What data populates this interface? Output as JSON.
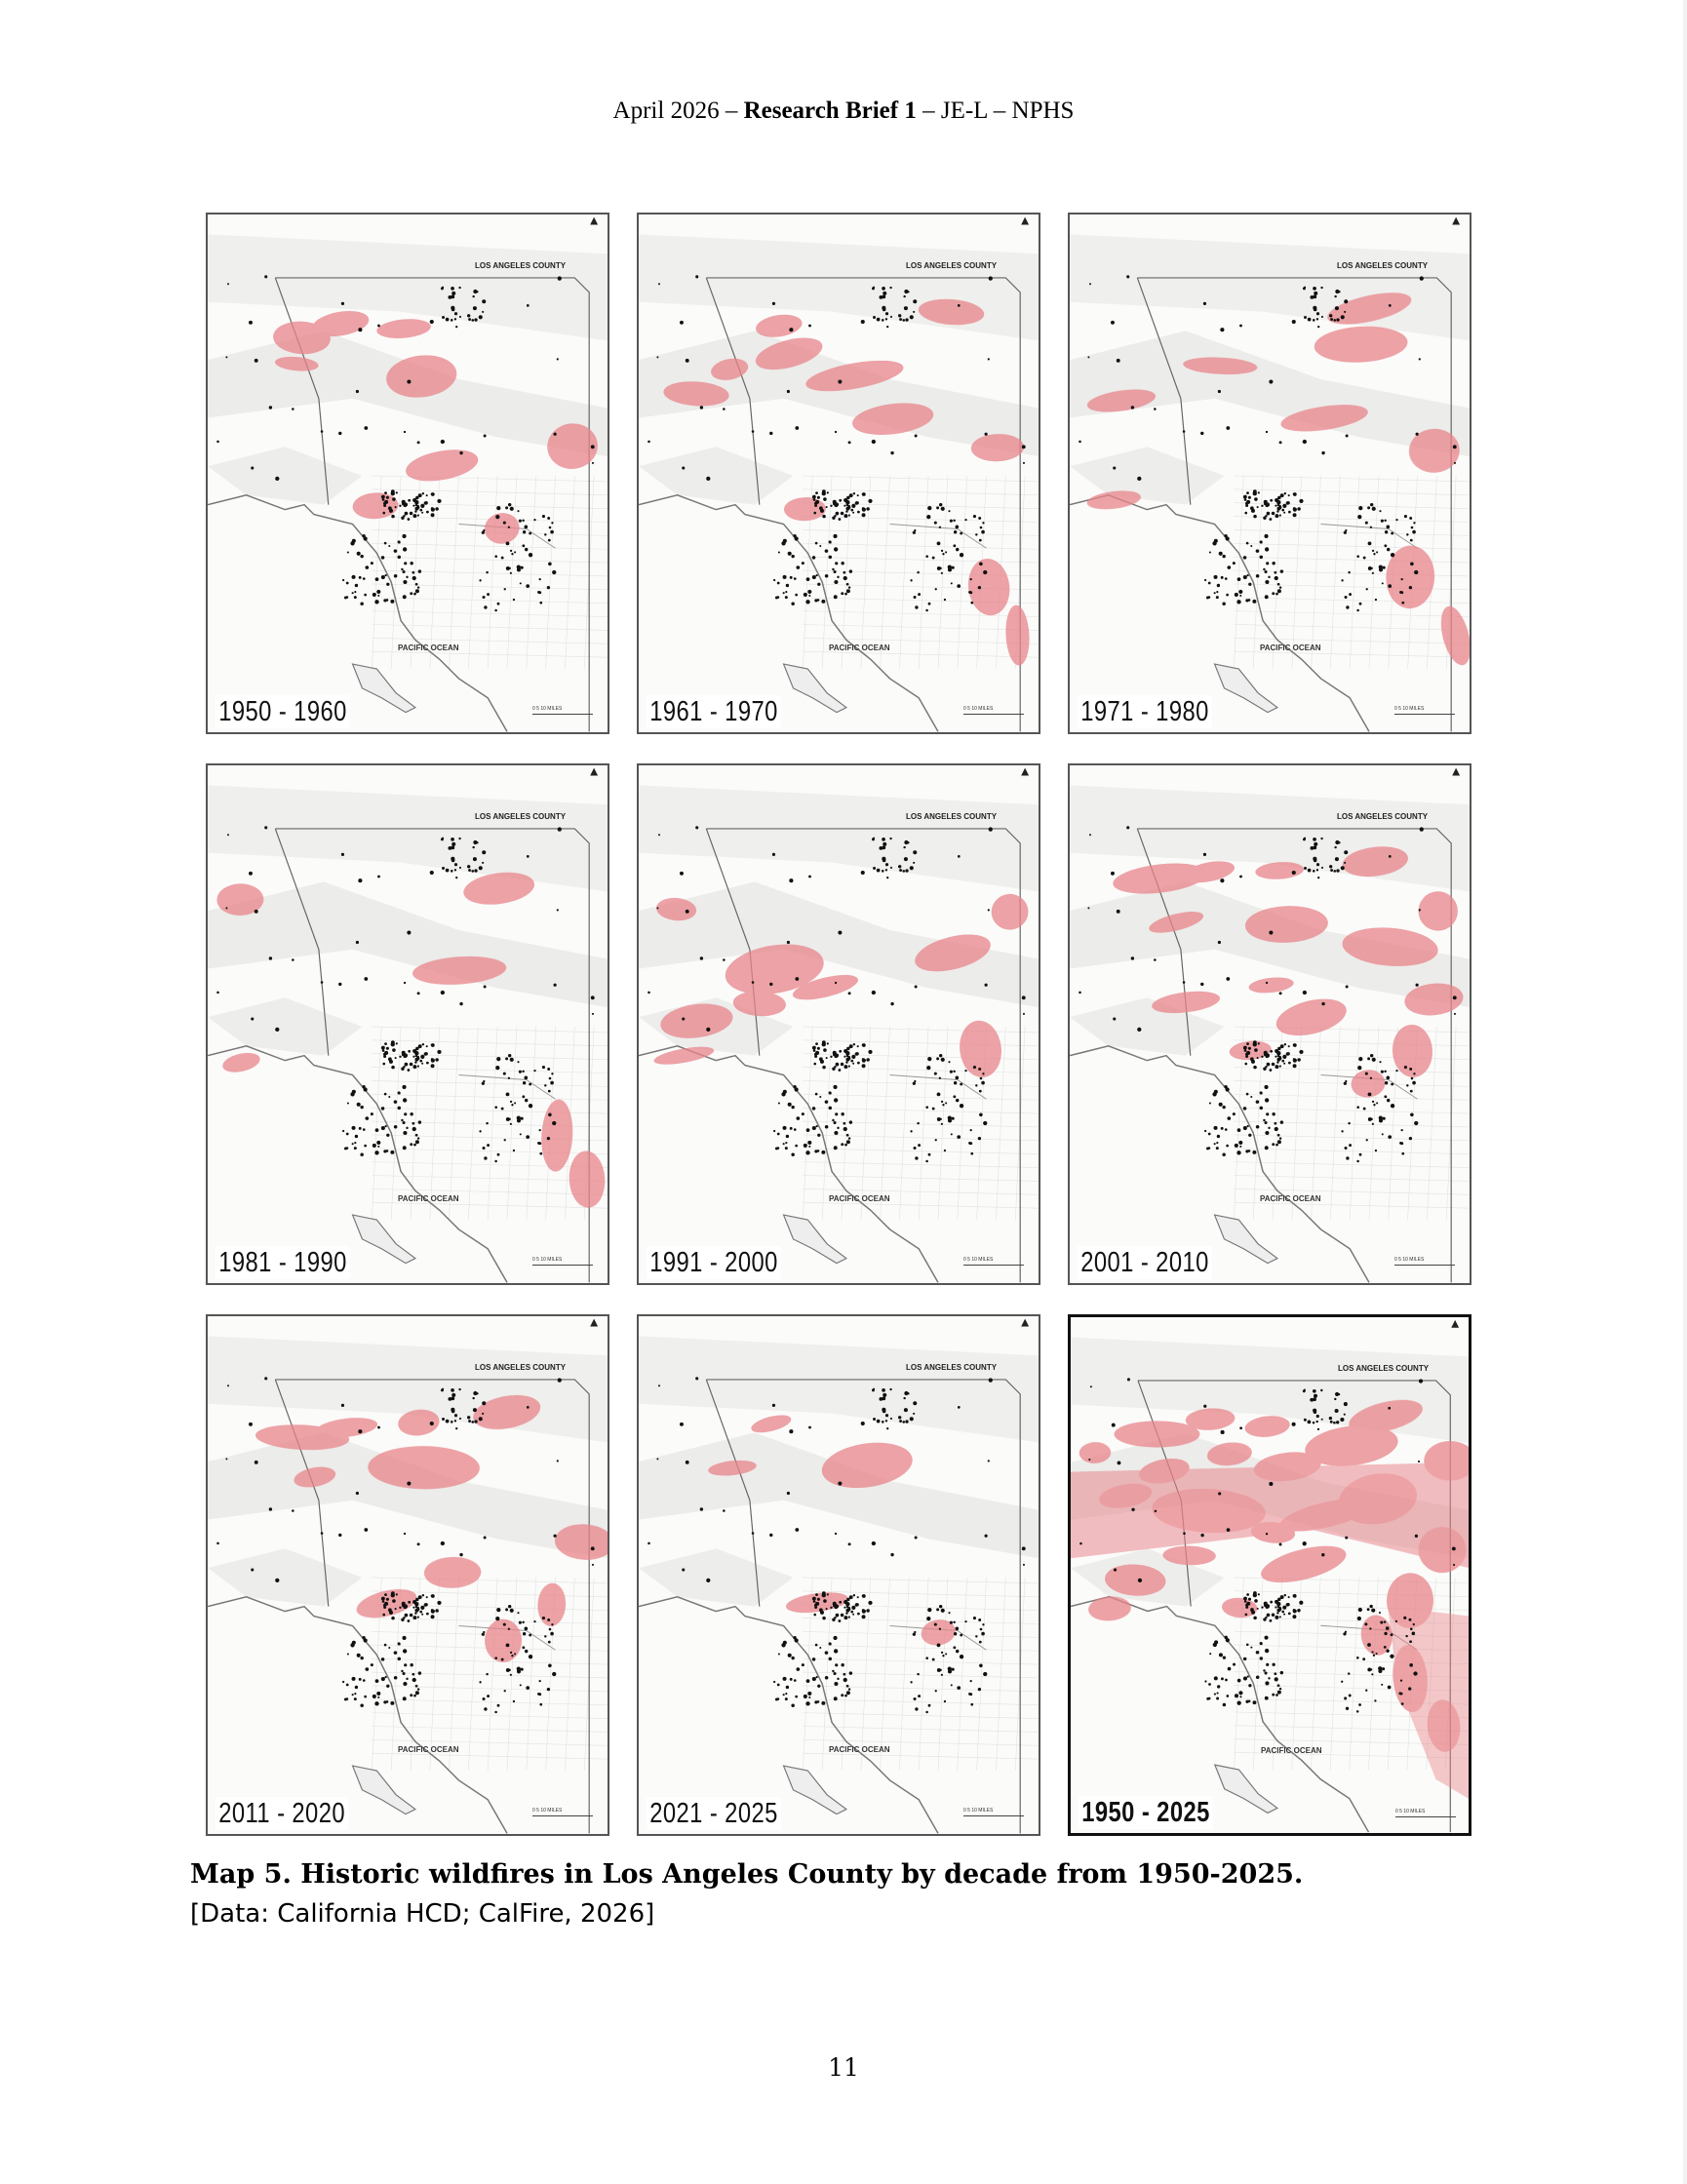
{
  "header": {
    "prefix": "April 2026 –",
    "bold": "Research Brief 1",
    "suffix": "– JE-L – NPHS"
  },
  "map_common": {
    "county_label": "LOS ANGELES COUNTY",
    "ocean_label": "PACIFIC OCEAN",
    "scale_label": "0      5      10 MILES",
    "fire_color": "#e8858a",
    "point_color": "#111111",
    "terrain_color": "#bdbdb8"
  },
  "panels": [
    {
      "label": "1950 - 1960",
      "fire_extent": 0.35
    },
    {
      "label": "1961 - 1970",
      "fire_extent": 0.45
    },
    {
      "label": "1971 - 1980",
      "fire_extent": 0.35
    },
    {
      "label": "1981 - 1990",
      "fire_extent": 0.25
    },
    {
      "label": "1991 - 2000",
      "fire_extent": 0.35
    },
    {
      "label": "2001 - 2010",
      "fire_extent": 0.6
    },
    {
      "label": "2011 - 2020",
      "fire_extent": 0.45
    },
    {
      "label": "2021 - 2025",
      "fire_extent": 0.2
    },
    {
      "label": "1950 - 2025",
      "fire_extent": 1.0
    }
  ],
  "caption": {
    "title": "Map 5. Historic wildfires in Los Angeles County by decade from 1950-2025.",
    "source": "[Data: California HCD; CalFire, 2026]"
  },
  "page_number": "11"
}
